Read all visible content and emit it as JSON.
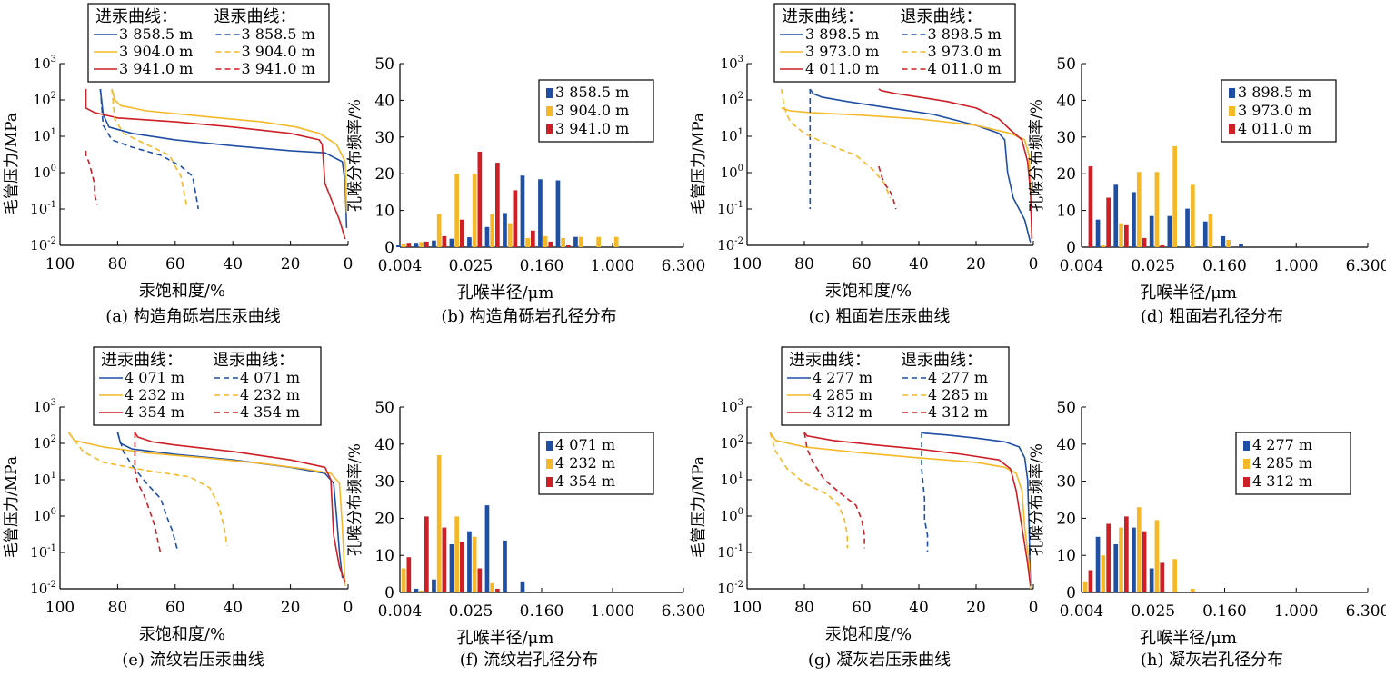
{
  "colors": {
    "blue": "#1f4fa3",
    "yellow": "#f5b829",
    "red": "#cc1f26"
  },
  "labels": {
    "cap_ylabel": "毛管压力/MPa",
    "cap_xlabel_a": "汞饱和度/%",
    "cap_xlabel_c": "汞饱和度/%",
    "cap_xlabel_e": "汞饱和度/%",
    "cap_xlabel_g": "汞饱和度/%",
    "pore_ylabel": "孔喉分布频率/%",
    "pore_xlabel": "孔喉半径/μm",
    "legend_in": "进汞曲线：",
    "legend_out": "退汞曲线："
  },
  "chart_data": [
    {
      "id": "a",
      "type": "line",
      "title": "(a) 构造角砾岩压汞曲线",
      "xlabel": "汞饱和度/%",
      "ylabel": "毛管压力/MPa",
      "xlim": [
        100,
        0
      ],
      "ylim": [
        0.01,
        1000
      ],
      "yscale": "log",
      "xticks": [
        "100",
        "80",
        "60",
        "40",
        "20",
        "0"
      ],
      "series": [
        {
          "name": "3 858.5 m",
          "style": "solid",
          "color": "#1f4fa3",
          "x": [
            86,
            85,
            83,
            75,
            60,
            40,
            20,
            8,
            2,
            1,
            0.5
          ],
          "y": [
            200,
            40,
            18,
            12,
            8,
            5.5,
            4,
            3.5,
            2,
            0.5,
            0.03
          ]
        },
        {
          "name": "3 904.0 m",
          "style": "solid",
          "color": "#f5b829",
          "x": [
            82,
            81,
            79,
            70,
            50,
            30,
            18,
            10,
            4,
            1,
            0.5
          ],
          "y": [
            200,
            100,
            70,
            50,
            35,
            25,
            18,
            12,
            6,
            2,
            0.08
          ]
        },
        {
          "name": "3 941.0 m",
          "style": "solid",
          "color": "#cc1f26",
          "x": [
            91,
            91,
            88,
            80,
            60,
            40,
            20,
            10,
            9,
            8,
            3,
            1
          ],
          "y": [
            200,
            60,
            45,
            32,
            25,
            18,
            12,
            8,
            6,
            0.5,
            0.05,
            0.015
          ]
        },
        {
          "name": "3 858.5 m",
          "style": "dashed",
          "color": "#1f4fa3",
          "x": [
            86,
            85,
            82,
            75,
            65,
            58,
            54,
            53,
            52
          ],
          "y": [
            200,
            20,
            8,
            5,
            3,
            1.5,
            0.8,
            0.3,
            0.1
          ]
        },
        {
          "name": "3 904.0 m",
          "style": "dashed",
          "color": "#f5b829",
          "x": [
            82,
            81,
            78,
            70,
            62,
            60,
            58,
            57,
            56
          ],
          "y": [
            200,
            30,
            12,
            6,
            3,
            1.5,
            0.8,
            0.3,
            0.12
          ]
        },
        {
          "name": "3 941.0 m",
          "style": "dashed",
          "color": "#cc1f26",
          "x": [
            91,
            91,
            90,
            89,
            88,
            88,
            87
          ],
          "y": [
            4,
            3,
            2,
            1,
            0.5,
            0.25,
            0.13
          ]
        }
      ]
    },
    {
      "id": "b",
      "type": "bar",
      "title": "(b) 构造角砾岩孔径分布",
      "xlabel": "孔喉半径/μm",
      "ylabel": "孔喉分布频率/%",
      "ylim": [
        0,
        50
      ],
      "xticks": [
        "0.004",
        "0.025",
        "0.160",
        "1.000",
        "6.300"
      ],
      "legend": [
        "3 858.5 m",
        "3 904.0 m",
        "3 941.0 m"
      ],
      "series": [
        {
          "name": "3 858.5 m",
          "color": "#1f4fa3",
          "values": [
            0.5,
            1.2,
            1.8,
            2.3,
            2.7,
            5.5,
            9.3,
            19.5,
            18.5,
            18.2,
            2.8,
            0,
            0
          ]
        },
        {
          "name": "3 904.0 m",
          "color": "#f5b829",
          "values": [
            1.0,
            1.4,
            9.0,
            20.0,
            20.0,
            9.0,
            6.5,
            2.5,
            3.0,
            2.5,
            2.8,
            2.8,
            2.8
          ]
        },
        {
          "name": "3 941.0 m",
          "color": "#cc1f26",
          "values": [
            1.2,
            1.5,
            3.0,
            7.5,
            26.0,
            23.0,
            15.5,
            4.5,
            1.5,
            0.5,
            0,
            0,
            0
          ]
        }
      ]
    },
    {
      "id": "c",
      "type": "line",
      "title": "(c) 粗面岩压汞曲线",
      "xlabel": "汞饱和度/%",
      "ylabel": "毛管压力/MPa",
      "xlim": [
        100,
        0
      ],
      "ylim": [
        0.01,
        1000
      ],
      "yscale": "log",
      "xticks": [
        "100",
        "80",
        "60",
        "40",
        "20",
        "0"
      ],
      "series": [
        {
          "name": "3 898.5 m",
          "style": "solid",
          "color": "#1f4fa3",
          "x": [
            78,
            77,
            74,
            65,
            50,
            35,
            20,
            12,
            10,
            9,
            7,
            3,
            1
          ],
          "y": [
            200,
            150,
            120,
            90,
            60,
            40,
            20,
            12,
            8,
            1,
            0.2,
            0.05,
            0.012
          ]
        },
        {
          "name": "3 973.0 m",
          "style": "solid",
          "color": "#f5b829",
          "x": [
            88,
            85,
            78,
            60,
            40,
            20,
            8,
            3,
            1.5,
            1,
            0.5
          ],
          "y": [
            60,
            50,
            45,
            38,
            30,
            20,
            12,
            8,
            3,
            0.5,
            0.015
          ]
        },
        {
          "name": "4 011.0 m",
          "style": "solid",
          "color": "#cc1f26",
          "x": [
            54,
            53,
            48,
            40,
            30,
            20,
            12,
            8,
            4,
            2,
            1,
            0.5
          ],
          "y": [
            200,
            180,
            150,
            120,
            90,
            60,
            30,
            15,
            8,
            2,
            0.3,
            0.015
          ]
        },
        {
          "name": "3 898.5 m",
          "style": "dashed",
          "color": "#1f4fa3",
          "x": [
            78,
            78,
            78,
            78,
            78
          ],
          "y": [
            200,
            10,
            1,
            0.3,
            0.1
          ]
        },
        {
          "name": "3 973.0 m",
          "style": "dashed",
          "color": "#f5b829",
          "x": [
            88,
            87,
            85,
            80,
            72,
            62,
            56,
            52,
            50
          ],
          "y": [
            200,
            60,
            25,
            12,
            6,
            3,
            1.2,
            0.5,
            0.2
          ]
        },
        {
          "name": "4 011.0 m",
          "style": "dashed",
          "color": "#cc1f26",
          "x": [
            54,
            53,
            52,
            50,
            49,
            48
          ],
          "y": [
            1.5,
            0.8,
            0.5,
            0.3,
            0.2,
            0.1
          ]
        }
      ]
    },
    {
      "id": "d",
      "type": "bar",
      "title": "(d) 粗面岩孔径分布",
      "xlabel": "孔喉半径/μm",
      "ylabel": "孔喉分布频率/%",
      "ylim": [
        0,
        50
      ],
      "xticks": [
        "0.004",
        "0.025",
        "0.160",
        "1.000",
        "6.300"
      ],
      "legend": [
        "3 898.5 m",
        "3 973.0 m",
        "4 011.0 m"
      ],
      "series": [
        {
          "name": "3 898.5 m",
          "color": "#1f4fa3",
          "values": [
            0,
            7.5,
            17.0,
            15.0,
            8.5,
            8.5,
            10.5,
            7.0,
            3.0,
            1.0
          ]
        },
        {
          "name": "3 973.0 m",
          "color": "#f5b829",
          "values": [
            0,
            0.5,
            6.5,
            20.5,
            20.5,
            27.5,
            17.0,
            9.0,
            2.0,
            0
          ]
        },
        {
          "name": "4 011.0 m",
          "color": "#cc1f26",
          "values": [
            22.0,
            13.5,
            6.0,
            2.5,
            0.5,
            0,
            0,
            0,
            0,
            0
          ]
        }
      ]
    },
    {
      "id": "e",
      "type": "line",
      "title": "(e) 流纹岩压汞曲线",
      "xlabel": "汞饱和度/%",
      "ylabel": "毛管压力/MPa",
      "xlim": [
        100,
        0
      ],
      "ylim": [
        0.01,
        1000
      ],
      "yscale": "log",
      "xticks": [
        "100",
        "80",
        "60",
        "40",
        "20",
        "0"
      ],
      "series": [
        {
          "name": "4 071 m",
          "style": "solid",
          "color": "#1f4fa3",
          "x": [
            80,
            79,
            75,
            60,
            40,
            20,
            8,
            5,
            4,
            3,
            2
          ],
          "y": [
            200,
            100,
            70,
            50,
            35,
            22,
            15,
            8,
            1,
            0.1,
            0.02
          ]
        },
        {
          "name": "4 232 m",
          "style": "solid",
          "color": "#f5b829",
          "x": [
            97,
            95,
            85,
            70,
            50,
            30,
            15,
            6,
            3,
            2,
            1
          ],
          "y": [
            200,
            120,
            80,
            55,
            40,
            28,
            20,
            15,
            8,
            0.5,
            0.012
          ]
        },
        {
          "name": "4 354 m",
          "style": "solid",
          "color": "#cc1f26",
          "x": [
            74,
            73,
            68,
            60,
            40,
            20,
            8,
            6,
            5,
            3,
            1
          ],
          "y": [
            200,
            150,
            110,
            90,
            60,
            35,
            22,
            10,
            0.3,
            0.04,
            0.015
          ]
        },
        {
          "name": "4 071 m",
          "style": "dashed",
          "color": "#1f4fa3",
          "x": [
            80,
            78,
            75,
            70,
            65,
            63,
            61,
            60,
            59
          ],
          "y": [
            200,
            60,
            25,
            8,
            3,
            1,
            0.4,
            0.2,
            0.1
          ]
        },
        {
          "name": "4 232 m",
          "style": "dashed",
          "color": "#f5b829",
          "x": [
            97,
            92,
            85,
            70,
            55,
            48,
            45,
            43,
            42
          ],
          "y": [
            200,
            60,
            30,
            18,
            12,
            6,
            2,
            0.5,
            0.15
          ]
        },
        {
          "name": "4 354 m",
          "style": "dashed",
          "color": "#cc1f26",
          "x": [
            74,
            74,
            73,
            71,
            69,
            67,
            66,
            65
          ],
          "y": [
            200,
            20,
            8,
            4,
            1.5,
            0.5,
            0.2,
            0.09
          ]
        }
      ]
    },
    {
      "id": "f",
      "type": "bar",
      "title": "(f) 流纹岩孔径分布",
      "xlabel": "孔喉半径/μm",
      "ylabel": "孔喉分布频率/%",
      "ylim": [
        0,
        50
      ],
      "xticks": [
        "0.004",
        "0.025",
        "0.160",
        "1.000",
        "6.300"
      ],
      "legend": [
        "4 071 m",
        "4 232 m",
        "4 354 m"
      ],
      "series": [
        {
          "name": "4 071 m",
          "color": "#1f4fa3",
          "values": [
            0,
            1.0,
            3.5,
            13.0,
            16.5,
            23.5,
            14.0,
            3.0
          ]
        },
        {
          "name": "4 232 m",
          "color": "#f5b829",
          "values": [
            6.5,
            0.5,
            37.0,
            20.5,
            15.0,
            2.5,
            0,
            0
          ]
        },
        {
          "name": "4 354 m",
          "color": "#cc1f26",
          "values": [
            9.5,
            20.5,
            17.5,
            13.5,
            6.5,
            1.0,
            0,
            0
          ]
        }
      ]
    },
    {
      "id": "g",
      "type": "line",
      "title": "(g) 凝灰岩压汞曲线",
      "xlabel": "汞饱和度/%",
      "ylabel": "毛管压力/MPa",
      "xlim": [
        100,
        0
      ],
      "ylim": [
        0.01,
        1000
      ],
      "yscale": "log",
      "xticks": [
        "100",
        "80",
        "60",
        "40",
        "20",
        "0"
      ],
      "series": [
        {
          "name": "4 277 m",
          "style": "solid",
          "color": "#1f4fa3",
          "x": [
            39,
            38,
            30,
            20,
            10,
            5,
            3,
            2,
            1.5,
            1
          ],
          "y": [
            200,
            190,
            170,
            140,
            110,
            80,
            40,
            10,
            0.5,
            0.012
          ]
        },
        {
          "name": "4 285 m",
          "style": "solid",
          "color": "#f5b829",
          "x": [
            92,
            90,
            80,
            60,
            40,
            20,
            10,
            6,
            4,
            3,
            1.5,
            1
          ],
          "y": [
            200,
            120,
            80,
            55,
            40,
            30,
            22,
            15,
            5,
            0.5,
            0.05,
            0.01
          ]
        },
        {
          "name": "4 312 m",
          "style": "solid",
          "color": "#cc1f26",
          "x": [
            80,
            79,
            70,
            55,
            40,
            25,
            12,
            8,
            6,
            4,
            2,
            1
          ],
          "y": [
            200,
            160,
            120,
            90,
            70,
            50,
            35,
            20,
            5,
            0.5,
            0.05,
            0.012
          ]
        },
        {
          "name": "4 277 m",
          "style": "dashed",
          "color": "#1f4fa3",
          "x": [
            39,
            39,
            38,
            38,
            37,
            37
          ],
          "y": [
            200,
            20,
            3,
            0.8,
            0.3,
            0.1
          ]
        },
        {
          "name": "4 285 m",
          "style": "dashed",
          "color": "#f5b829",
          "x": [
            92,
            90,
            86,
            80,
            72,
            68,
            66,
            65,
            65
          ],
          "y": [
            200,
            60,
            20,
            8,
            4,
            2,
            0.8,
            0.3,
            0.13
          ]
        },
        {
          "name": "4 312 m",
          "style": "dashed",
          "color": "#cc1f26",
          "x": [
            80,
            79,
            77,
            73,
            67,
            62,
            60,
            59,
            59
          ],
          "y": [
            200,
            70,
            30,
            10,
            4,
            2,
            0.8,
            0.3,
            0.13
          ]
        }
      ]
    },
    {
      "id": "h",
      "type": "bar",
      "title": "(h) 凝灰岩孔径分布",
      "xlabel": "孔喉半径/μm",
      "ylabel": "孔喉分布频率/%",
      "ylim": [
        0,
        50
      ],
      "xticks": [
        "0.004",
        "0.025",
        "0.160",
        "1.000",
        "6.300"
      ],
      "legend": [
        "4 277 m",
        "4 285 m",
        "4 312 m"
      ],
      "series": [
        {
          "name": "4 277 m",
          "color": "#1f4fa3",
          "values": [
            0,
            15.0,
            13.0,
            17.5,
            6.5,
            0,
            0,
            0
          ]
        },
        {
          "name": "4 285 m",
          "color": "#f5b829",
          "values": [
            3.0,
            10.0,
            17.5,
            23.0,
            19.5,
            9.0,
            1.0,
            0
          ]
        },
        {
          "name": "4 312 m",
          "color": "#cc1f26",
          "values": [
            6.0,
            18.5,
            20.5,
            16.5,
            8.0,
            0,
            0,
            0
          ]
        }
      ]
    }
  ]
}
